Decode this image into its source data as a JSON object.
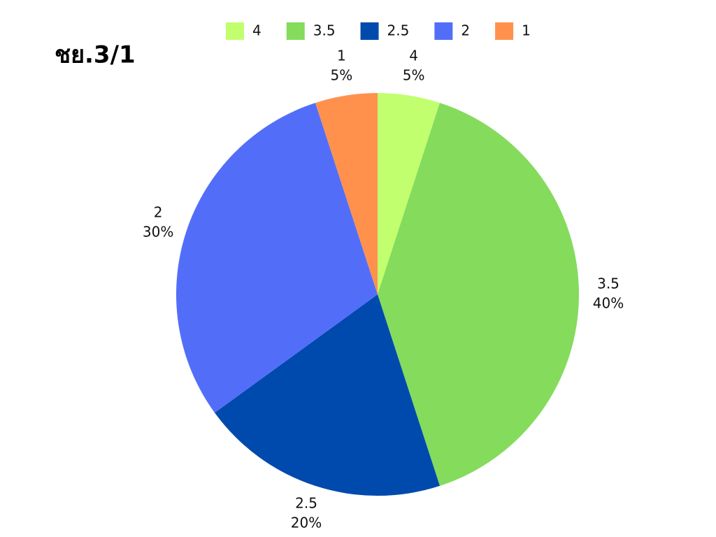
{
  "chart_data": {
    "type": "pie",
    "title": "ชย.3/1",
    "categories": [
      "4",
      "3.5",
      "2.5",
      "2",
      "1"
    ],
    "values": [
      5,
      40,
      20,
      30,
      5
    ],
    "value_labels": [
      "5%",
      "40%",
      "20%",
      "30%",
      "5%"
    ],
    "colors": [
      "#c1ff6e",
      "#84db5c",
      "#004aad",
      "#526ef9",
      "#ff914d"
    ],
    "legend": "top"
  }
}
